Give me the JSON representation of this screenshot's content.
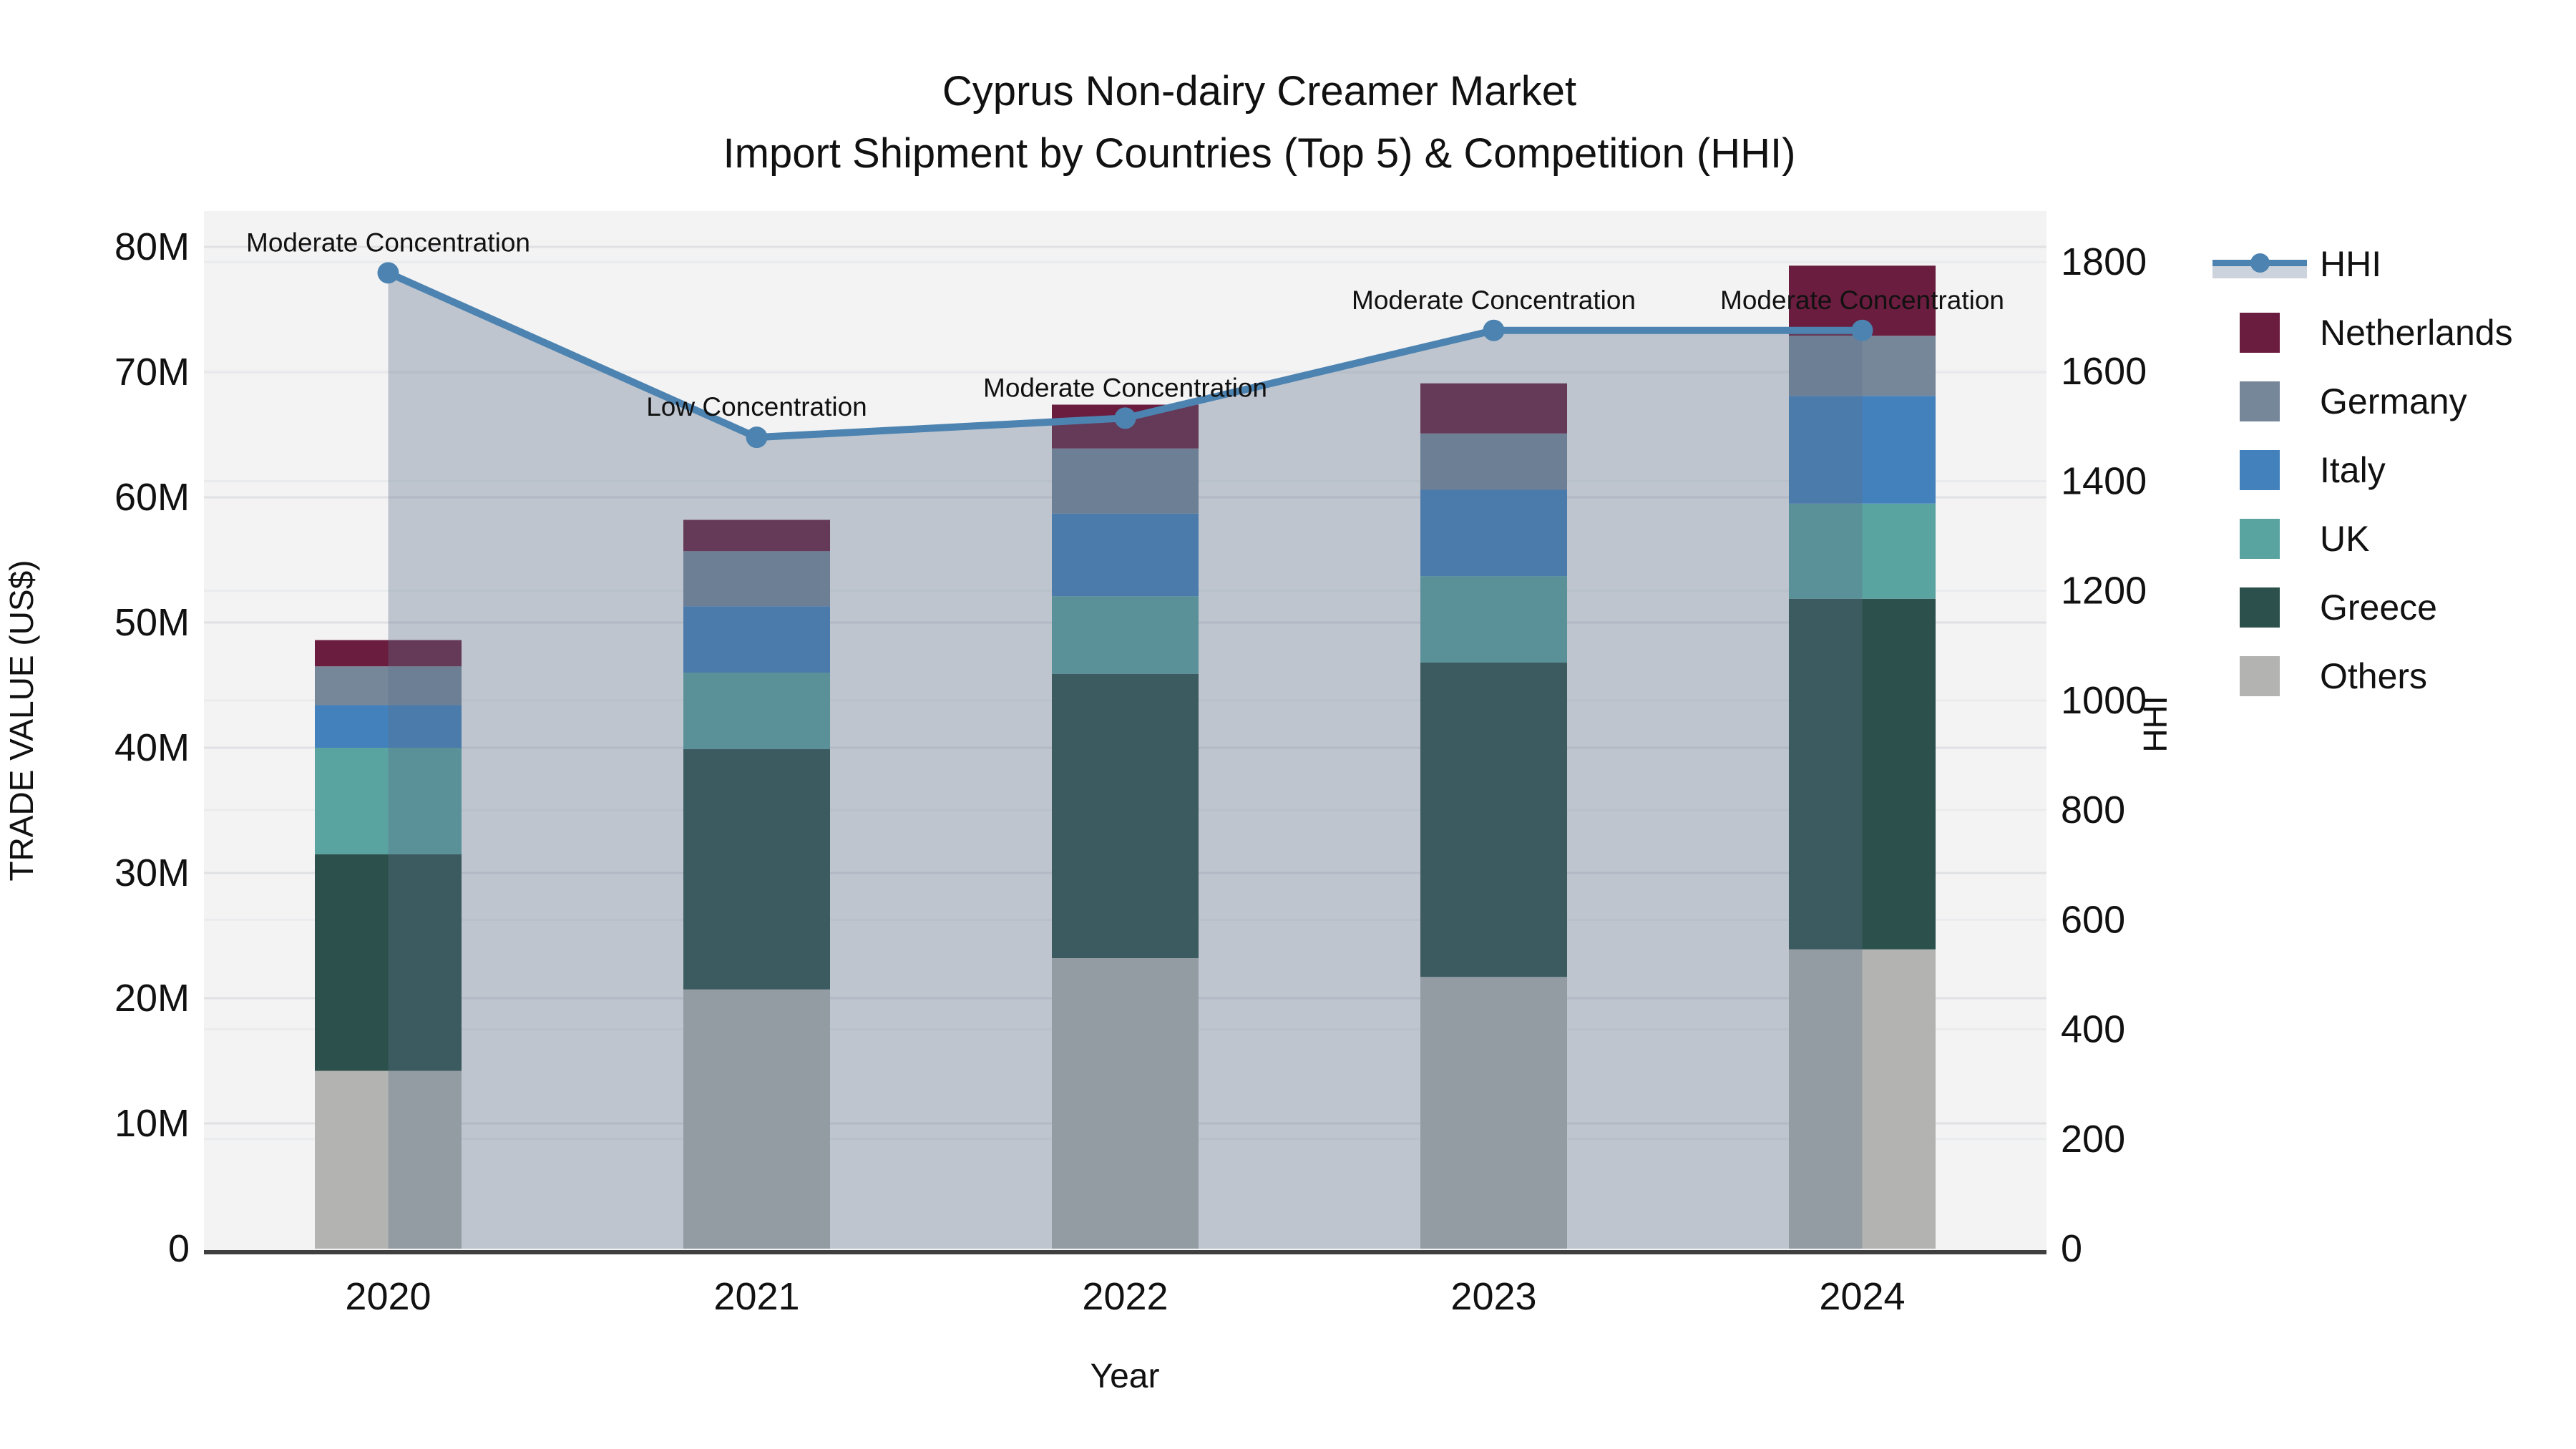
{
  "page": {
    "title_line1": "Cyprus Non-dairy Creamer Market",
    "title_line2": "Import Shipment by Countries (Top 5) & Competition (HHI)"
  },
  "legend": {
    "items": [
      {
        "label": "HHI",
        "type": "line",
        "color": "#4c83b0"
      },
      {
        "label": "Netherlands",
        "type": "square",
        "color": "#6a1d3e"
      },
      {
        "label": "Germany",
        "type": "square",
        "color": "#76879a"
      },
      {
        "label": "Italy",
        "type": "square",
        "color": "#4381bd"
      },
      {
        "label": "UK",
        "type": "square",
        "color": "#59a3a1"
      },
      {
        "label": "Greece",
        "type": "square",
        "color": "#2c514c"
      },
      {
        "label": "Others",
        "type": "square",
        "color": "#b3b4b1"
      }
    ]
  },
  "chart_data": {
    "type": "bar",
    "subtype": "stacked-bar-with-line",
    "title": "Cyprus Non-dairy Creamer Market — Import Shipment by Countries (Top 5) & Competition (HHI)",
    "categories": [
      "2020",
      "2021",
      "2022",
      "2023",
      "2024"
    ],
    "series": [
      {
        "name": "Others",
        "color": "#b3b4b1",
        "values": [
          14.2,
          20.7,
          23.2,
          21.7,
          23.9
        ]
      },
      {
        "name": "Greece",
        "color": "#2c514c",
        "values": [
          17.3,
          19.2,
          22.7,
          25.1,
          28.0
        ]
      },
      {
        "name": "UK",
        "color": "#59a3a1",
        "values": [
          8.5,
          6.1,
          6.2,
          6.9,
          7.6
        ]
      },
      {
        "name": "Italy",
        "color": "#4381bd",
        "values": [
          3.4,
          5.3,
          6.6,
          6.9,
          8.6
        ]
      },
      {
        "name": "Germany",
        "color": "#76879a",
        "values": [
          3.1,
          4.4,
          5.2,
          4.5,
          4.8
        ]
      },
      {
        "name": "Netherlands",
        "color": "#6a1d3e",
        "values": [
          2.1,
          2.5,
          3.5,
          4.0,
          5.6
        ]
      }
    ],
    "bar_totals": [
      48.6,
      58.2,
      67.4,
      69.1,
      78.5
    ],
    "line_series": {
      "name": "HHI",
      "color": "#4c83b0",
      "area_fill": "rgba(93,113,137,0.35)",
      "values": [
        1780,
        1480,
        1515,
        1675,
        1675
      ],
      "annotations": [
        "Moderate Concentration",
        "Low Concentration",
        "Moderate Concentration",
        "Moderate Concentration",
        "Moderate Concentration"
      ]
    },
    "xlabel": "Year",
    "y_left": {
      "label": "TRADE VALUE (US$)",
      "max": 80,
      "ticks": [
        "0",
        "10M",
        "20M",
        "30M",
        "40M",
        "50M",
        "60M",
        "70M",
        "80M"
      ]
    },
    "y_right": {
      "label": "HHI",
      "max": 1800,
      "ticks": [
        "0",
        "200",
        "400",
        "600",
        "800",
        "1000",
        "1200",
        "1400",
        "1600",
        "1800"
      ]
    },
    "grid": true,
    "legend_position": "right",
    "plot_bg": "#f3f3f4"
  }
}
